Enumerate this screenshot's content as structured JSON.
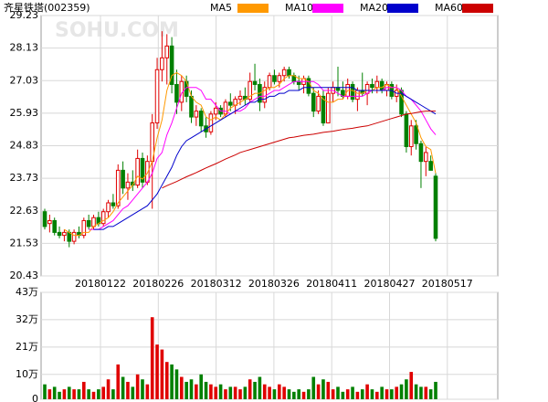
{
  "chart_data": [
    {
      "type": "candlestick",
      "title": "齐星铁塔(002359)",
      "watermark": "SOHU.COM",
      "ylim": [
        20.43,
        29.23
      ],
      "yticks": [
        20.43,
        21.53,
        22.63,
        23.73,
        24.83,
        25.93,
        27.03,
        28.13,
        29.23
      ],
      "x_labels": [
        "20180122",
        "20180226",
        "20180312",
        "20180326",
        "20180411",
        "20180427",
        "20180517"
      ],
      "up_color": "#e00000",
      "down_color": "#008000",
      "grid": true,
      "open": [
        22.6,
        22.2,
        22.3,
        21.9,
        21.8,
        21.9,
        21.6,
        21.9,
        21.8,
        22.3,
        22.1,
        22.4,
        22.2,
        22.6,
        22.9,
        22.8,
        24.0,
        23.4,
        23.6,
        23.5,
        24.4,
        23.6,
        24.3,
        25.6,
        27.4,
        27.8,
        28.2,
        26.9,
        26.3,
        27.0,
        26.5,
        25.8,
        26.0,
        25.5,
        25.3,
        25.9,
        26.1,
        25.9,
        26.3,
        26.2,
        26.4,
        26.5,
        26.4,
        27.0,
        26.9,
        26.3,
        26.8,
        27.2,
        27.0,
        27.2,
        27.4,
        27.2,
        27.0,
        26.9,
        27.1,
        26.6,
        26.0,
        26.5,
        25.6,
        26.6,
        26.8,
        26.7,
        26.5,
        26.9,
        26.4,
        26.7,
        26.6,
        26.9,
        26.8,
        27.0,
        26.7,
        26.9,
        26.5,
        26.7,
        25.9,
        24.8,
        25.5,
        24.9,
        24.3,
        24.3,
        23.8
      ],
      "high": [
        22.7,
        22.5,
        22.4,
        22.1,
        22.0,
        22.0,
        22.0,
        22.1,
        22.4,
        22.5,
        22.5,
        22.6,
        22.7,
        23.0,
        23.2,
        24.2,
        24.3,
        23.9,
        24.0,
        24.7,
        24.6,
        24.5,
        25.9,
        27.8,
        28.7,
        28.6,
        28.5,
        27.4,
        27.2,
        27.2,
        26.7,
        26.2,
        26.1,
        25.8,
        26.0,
        26.3,
        26.2,
        26.4,
        26.6,
        26.5,
        26.7,
        26.8,
        27.3,
        27.6,
        27.1,
        27.0,
        27.3,
        27.4,
        27.3,
        27.5,
        27.5,
        27.3,
        27.2,
        27.2,
        27.2,
        26.8,
        26.7,
        26.7,
        26.8,
        27.0,
        27.5,
        27.0,
        27.1,
        27.0,
        26.8,
        27.3,
        27.0,
        27.1,
        27.2,
        27.1,
        27.0,
        27.0,
        26.9,
        26.8,
        26.0,
        25.7,
        25.7,
        25.0,
        24.8,
        24.5,
        23.9
      ],
      "low": [
        22.0,
        21.9,
        21.8,
        21.7,
        21.6,
        21.4,
        21.5,
        21.7,
        21.7,
        22.0,
        22.0,
        22.1,
        22.1,
        22.4,
        22.7,
        22.7,
        23.2,
        23.0,
        23.3,
        23.4,
        23.4,
        23.5,
        22.7,
        25.4,
        27.0,
        26.9,
        26.6,
        25.9,
        26.0,
        26.3,
        25.6,
        25.5,
        25.3,
        25.1,
        25.2,
        25.7,
        25.8,
        25.8,
        26.0,
        25.9,
        26.2,
        26.2,
        26.3,
        26.7,
        26.0,
        26.1,
        26.7,
        26.9,
        26.8,
        27.0,
        27.1,
        26.9,
        26.7,
        26.6,
        26.5,
        25.8,
        25.9,
        25.5,
        25.6,
        26.3,
        26.5,
        26.4,
        26.4,
        26.3,
        26.0,
        26.5,
        26.2,
        26.6,
        26.6,
        26.6,
        26.5,
        26.4,
        26.3,
        25.8,
        24.6,
        24.5,
        24.7,
        23.4,
        23.8,
        24.0,
        21.6
      ],
      "close": [
        22.1,
        22.3,
        21.9,
        21.8,
        21.9,
        21.6,
        21.9,
        21.8,
        22.3,
        22.1,
        22.4,
        22.2,
        22.6,
        22.9,
        22.8,
        24.0,
        23.4,
        23.6,
        23.5,
        24.4,
        23.6,
        24.3,
        25.6,
        27.4,
        27.8,
        28.2,
        26.9,
        26.3,
        27.0,
        26.5,
        25.8,
        26.0,
        25.5,
        25.3,
        25.9,
        26.1,
        25.9,
        26.3,
        26.2,
        26.4,
        26.5,
        26.4,
        27.0,
        26.9,
        26.3,
        26.8,
        27.2,
        27.0,
        27.2,
        27.4,
        27.2,
        27.0,
        26.9,
        27.1,
        26.6,
        26.0,
        26.5,
        25.6,
        26.6,
        26.8,
        26.7,
        26.5,
        26.9,
        26.4,
        26.7,
        26.6,
        26.9,
        26.8,
        27.0,
        26.7,
        26.9,
        26.5,
        26.7,
        25.9,
        24.8,
        25.5,
        24.9,
        24.3,
        24.6,
        24.0,
        21.7
      ],
      "series": [
        {
          "name": "MA5",
          "color": "#ff9900",
          "values": [
            null,
            null,
            null,
            null,
            22.0,
            21.9,
            21.8,
            21.8,
            21.9,
            21.9,
            22.1,
            22.2,
            22.3,
            22.4,
            22.6,
            22.9,
            23.1,
            23.3,
            23.5,
            23.8,
            23.7,
            23.9,
            24.3,
            25.1,
            25.7,
            26.7,
            27.2,
            27.3,
            27.2,
            27.0,
            26.5,
            26.3,
            26.2,
            25.8,
            25.7,
            25.8,
            25.7,
            25.9,
            26.1,
            26.2,
            26.3,
            26.4,
            26.5,
            26.6,
            26.6,
            26.7,
            26.8,
            26.8,
            26.9,
            27.1,
            27.2,
            27.2,
            27.1,
            27.1,
            27.0,
            26.7,
            26.6,
            26.4,
            26.3,
            26.3,
            26.4,
            26.4,
            26.7,
            26.7,
            26.6,
            26.6,
            26.7,
            26.7,
            26.8,
            26.8,
            26.9,
            26.8,
            26.8,
            26.5,
            26.2,
            25.9,
            25.6,
            25.1,
            24.8,
            24.7,
            23.9
          ]
        },
        {
          "name": "MA10",
          "color": "#ff00ff",
          "values": [
            null,
            null,
            null,
            null,
            null,
            null,
            null,
            null,
            null,
            22.0,
            22.0,
            22.0,
            22.1,
            22.2,
            22.3,
            22.5,
            22.7,
            22.8,
            23.0,
            23.2,
            23.4,
            23.6,
            23.9,
            24.4,
            24.6,
            25.2,
            25.6,
            26.1,
            26.6,
            26.8,
            26.8,
            26.8,
            26.7,
            26.4,
            26.4,
            26.2,
            26.0,
            26.0,
            25.9,
            26.0,
            26.0,
            26.1,
            26.3,
            26.4,
            26.5,
            26.5,
            26.6,
            26.7,
            26.7,
            26.8,
            26.9,
            27.0,
            27.0,
            27.0,
            27.0,
            27.0,
            26.9,
            26.7,
            26.7,
            26.7,
            26.6,
            26.5,
            26.5,
            26.5,
            26.5,
            26.5,
            26.6,
            26.7,
            26.7,
            26.7,
            26.8,
            26.8,
            26.8,
            26.7,
            26.5,
            26.4,
            26.2,
            26.0,
            25.7,
            25.4,
            25.2
          ]
        },
        {
          "name": "MA20",
          "color": "#0000cc",
          "values": [
            null,
            null,
            null,
            null,
            null,
            null,
            null,
            null,
            null,
            null,
            22.0,
            22.0,
            22.0,
            22.1,
            22.1,
            22.2,
            22.3,
            22.4,
            22.5,
            22.6,
            22.7,
            22.8,
            23.0,
            23.2,
            23.5,
            23.8,
            24.1,
            24.5,
            24.8,
            25.0,
            25.1,
            25.2,
            25.3,
            25.4,
            25.5,
            25.6,
            25.7,
            25.8,
            25.9,
            26.0,
            26.1,
            26.2,
            26.3,
            26.3,
            26.4,
            26.4,
            26.5,
            26.5,
            26.6,
            26.6,
            26.7,
            26.7,
            26.7,
            26.8,
            26.8,
            26.8,
            26.8,
            26.8,
            26.8,
            26.8,
            26.8,
            26.8,
            26.8,
            26.8,
            26.7,
            26.7,
            26.7,
            26.7,
            26.7,
            26.7,
            26.7,
            26.7,
            26.6,
            26.6,
            26.5,
            26.4,
            26.3,
            26.2,
            26.1,
            26.0,
            25.9
          ]
        },
        {
          "name": "MA60",
          "color": "#cc0000",
          "values": [
            null,
            null,
            null,
            null,
            null,
            null,
            null,
            null,
            null,
            null,
            null,
            null,
            null,
            null,
            null,
            null,
            null,
            null,
            null,
            null,
            null,
            null,
            null,
            null,
            23.4,
            23.48,
            23.55,
            23.62,
            23.7,
            23.78,
            23.85,
            23.92,
            24.0,
            24.08,
            24.15,
            24.22,
            24.3,
            24.38,
            24.45,
            24.52,
            24.6,
            24.65,
            24.7,
            24.75,
            24.8,
            24.85,
            24.9,
            24.95,
            25.0,
            25.05,
            25.1,
            25.12,
            25.15,
            25.18,
            25.2,
            25.22,
            25.25,
            25.28,
            25.3,
            25.32,
            25.35,
            25.38,
            25.4,
            25.42,
            25.45,
            25.48,
            25.5,
            25.55,
            25.6,
            25.65,
            25.7,
            25.75,
            25.8,
            25.85,
            25.9,
            25.92,
            25.95,
            25.98,
            26.0,
            26.0,
            26.0
          ]
        }
      ]
    },
    {
      "type": "bar",
      "ylim": [
        0,
        43
      ],
      "yticks": [
        0,
        {
          "value": 10,
          "label": "10万"
        },
        {
          "value": 21,
          "label": "21万"
        },
        {
          "value": 32,
          "label": "32万"
        },
        {
          "value": 43,
          "label": "43万"
        }
      ],
      "values": [
        6,
        4,
        5,
        3,
        4,
        5,
        4,
        4,
        7,
        4,
        3,
        4,
        5,
        8,
        4,
        14,
        9,
        7,
        5,
        10,
        8,
        6,
        33,
        22,
        20,
        15,
        14,
        12,
        9,
        7,
        8,
        6,
        10,
        7,
        6,
        5,
        6,
        4,
        5,
        5,
        4,
        5,
        8,
        7,
        9,
        6,
        5,
        4,
        6,
        5,
        4,
        3,
        4,
        3,
        4,
        9,
        6,
        8,
        7,
        4,
        5,
        3,
        4,
        5,
        3,
        4,
        6,
        4,
        3,
        5,
        4,
        4,
        5,
        6,
        8,
        11,
        6,
        5,
        5,
        4,
        7
      ]
    }
  ]
}
